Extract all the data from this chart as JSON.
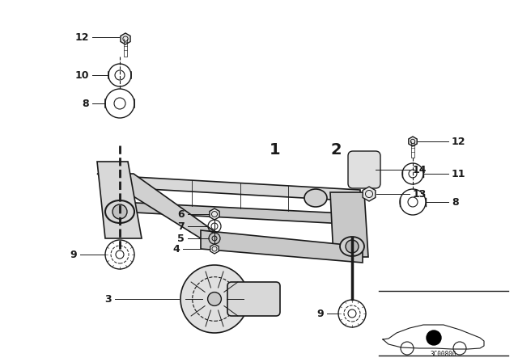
{
  "bg_color": "#ffffff",
  "line_color": "#1a1a1a",
  "fig_width": 6.4,
  "fig_height": 4.48,
  "dpi": 100,
  "watermark": "3C00800"
}
